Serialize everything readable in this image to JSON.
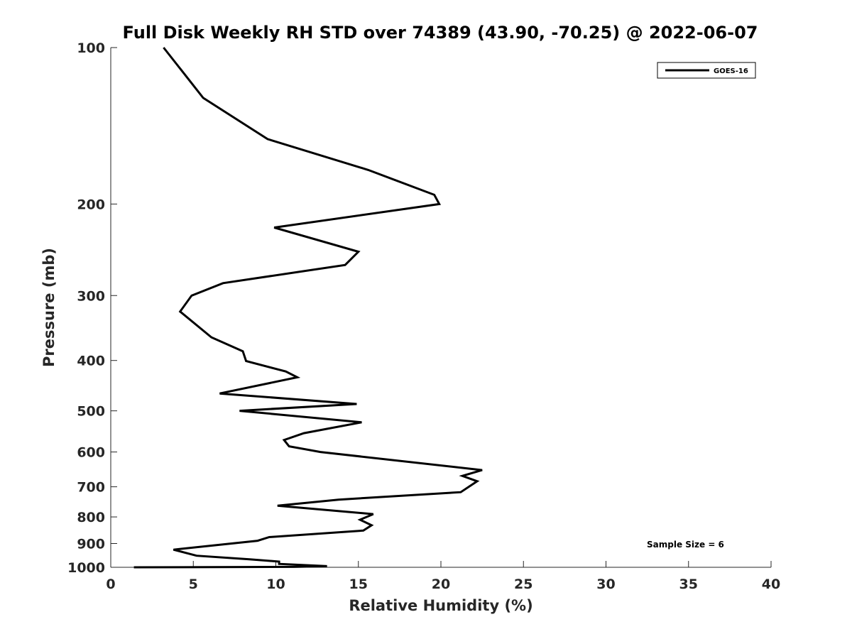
{
  "chart_data": {
    "type": "line",
    "title": "Full Disk Weekly RH STD over 74389 (43.90, -70.25) @ 2022-06-07",
    "xlabel": "Relative Humidity (%)",
    "ylabel": "Pressure (mb)",
    "xlim": [
      0,
      40
    ],
    "ylim": [
      100,
      1000
    ],
    "yscale": "log",
    "xticks": [
      0,
      5,
      10,
      15,
      20,
      25,
      30,
      35,
      40
    ],
    "yticks": [
      100,
      200,
      300,
      400,
      500,
      600,
      700,
      800,
      900,
      1000
    ],
    "legend": {
      "placement": "top-right",
      "entries": [
        "GOES-16"
      ]
    },
    "annotation": "Sample Size = 6",
    "series": [
      {
        "name": "GOES-16",
        "color": "#000000",
        "x": [
          3.2,
          5.6,
          9.5,
          15.6,
          19.6,
          19.9,
          9.9,
          15.0,
          14.2,
          6.8,
          4.9,
          4.2,
          6.1,
          8.0,
          8.2,
          10.6,
          11.3,
          6.6,
          14.9,
          7.8,
          15.2,
          11.7,
          10.5,
          10.8,
          12.7,
          22.5,
          21.3,
          22.2,
          21.2,
          13.8,
          10.1,
          15.9,
          15.1,
          15.8,
          15.3,
          9.6,
          8.9,
          3.8,
          5.2,
          8.4,
          10.2,
          10.2,
          13.1,
          11.1,
          1.4
        ],
        "y": [
          100,
          125,
          150,
          172,
          192,
          200,
          222,
          247,
          262,
          284,
          300,
          322,
          361,
          384,
          401,
          420,
          431,
          463,
          485,
          500,
          526,
          552,
          569,
          585,
          600,
          650,
          667,
          683,
          717,
          741,
          761,
          790,
          810,
          830,
          850,
          875,
          889,
          925,
          950,
          965,
          975,
          985,
          995,
          998,
          1000
        ]
      }
    ]
  }
}
